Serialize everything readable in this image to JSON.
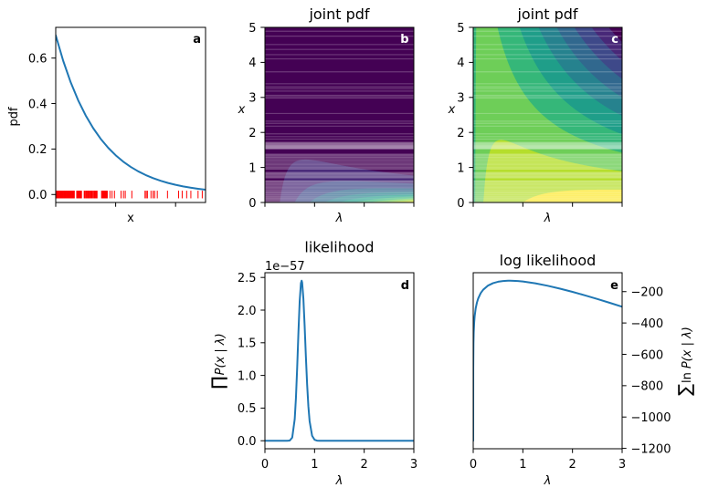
{
  "samples": [
    0.01,
    0.03,
    0.04,
    0.06,
    0.08,
    0.09,
    0.11,
    0.12,
    0.14,
    0.16,
    0.17,
    0.19,
    0.21,
    0.22,
    0.24,
    0.26,
    0.28,
    0.29,
    0.31,
    0.33,
    0.35,
    0.37,
    0.39,
    0.41,
    0.43,
    0.45,
    0.47,
    0.49,
    0.51,
    0.53,
    0.55,
    0.57,
    0.59,
    0.61,
    0.62,
    0.7,
    0.72,
    0.74,
    0.76,
    0.78,
    0.8,
    0.82,
    0.84,
    0.86,
    0.95,
    0.97,
    1.0,
    1.02,
    1.05,
    1.08,
    1.1,
    1.13,
    1.16,
    1.19,
    1.21,
    1.24,
    1.27,
    1.29,
    1.31,
    1.34,
    1.36,
    1.38,
    1.53,
    1.54,
    1.55,
    1.56,
    1.57,
    1.58,
    1.59,
    1.6,
    1.61,
    1.62,
    1.63,
    1.64,
    1.66,
    1.67,
    1.69,
    1.7,
    1.72,
    1.81,
    1.88,
    1.96,
    2.18,
    2.26,
    2.32,
    2.54,
    2.98,
    3.02,
    3.06,
    3.18,
    3.25,
    3.3,
    3.39,
    3.73,
    4.1,
    4.22,
    4.37,
    4.51,
    4.75,
    4.89
  ],
  "chart_data": [
    {
      "panel": "a",
      "type": "line",
      "title": "",
      "xlabel": "x",
      "ylabel": "pdf",
      "xlim": [
        0,
        5
      ],
      "ylim": [
        -0.035,
        0.735
      ],
      "xticks": [
        0,
        2,
        4
      ],
      "xticklabels": [],
      "yticks": [
        0,
        0.2,
        0.4,
        0.6
      ],
      "yticklabels": [
        "0.0",
        "0.2",
        "0.4",
        "0.6"
      ],
      "yaxis_side": "left",
      "grid": false,
      "series": [
        {
          "name": "pdf",
          "color": "#1f77b4",
          "x": [
            0,
            0.25,
            0.5,
            0.75,
            1,
            1.25,
            1.5,
            1.75,
            2,
            2.25,
            2.5,
            2.75,
            3,
            3.25,
            3.5,
            3.75,
            4,
            4.25,
            4.5,
            4.75,
            5
          ],
          "y": [
            0.7,
            0.5876,
            0.4933,
            0.4141,
            0.3476,
            0.2918,
            0.2449,
            0.2056,
            0.1726,
            0.1449,
            0.1217,
            0.1021,
            0.0857,
            0.072,
            0.0604,
            0.0507,
            0.0426,
            0.0357,
            0.03,
            0.0252,
            0.0211
          ]
        }
      ],
      "rug": {
        "source": "samples",
        "y": 0,
        "color": "#ff0000"
      },
      "panel_label": "a",
      "panel_label_color": "#000000"
    },
    {
      "panel": "b",
      "type": "contourf",
      "title": "joint pdf",
      "xlabel": "λ",
      "ylabel": "x",
      "xlim": [
        0,
        3
      ],
      "ylim": [
        0,
        5
      ],
      "xticks": [
        0,
        1,
        2,
        3
      ],
      "xticklabels": [],
      "yticks": [
        0,
        1,
        2,
        3,
        4,
        5
      ],
      "yticklabels": [
        "0",
        "1",
        "2",
        "3",
        "4",
        "5"
      ],
      "yaxis_side": "left",
      "z": "pdf",
      "colormap": "viridis",
      "levels": [
        0,
        0.3,
        0.6,
        0.9,
        1.2,
        1.5,
        1.8,
        2.1,
        2.4,
        2.7,
        3.0
      ],
      "colors": [
        "#440154",
        "#482878",
        "#3e4989",
        "#31688e",
        "#26828e",
        "#1f9e89",
        "#35b779",
        "#6ece58",
        "#b5de2b",
        "#fde725"
      ],
      "hlines": {
        "source": "samples",
        "color": "#ffffff",
        "alpha": 0.22
      },
      "panel_label": "b",
      "panel_label_color": "#ffffff"
    },
    {
      "panel": "c",
      "type": "contourf",
      "title": "joint pdf",
      "xlabel": "λ",
      "ylabel": "x",
      "xlim": [
        0,
        3
      ],
      "ylim": [
        0,
        5
      ],
      "xticks": [
        0,
        1,
        2,
        3
      ],
      "xticklabels": [],
      "yticks": [
        0,
        1,
        2,
        3,
        4,
        5
      ],
      "yticklabels": [
        "0",
        "1",
        "2",
        "3",
        "4",
        "5"
      ],
      "yaxis_side": "left",
      "z": "log_pdf",
      "colormap": "viridis",
      "levels": [
        -14.22,
        -12.64,
        -11.06,
        -9.48,
        -7.9,
        -6.32,
        -4.74,
        -3.16,
        -1.58,
        0,
        1.58
      ],
      "colors": [
        "#440154",
        "#482878",
        "#3e4989",
        "#31688e",
        "#26828e",
        "#1f9e89",
        "#35b779",
        "#6ece58",
        "#b5de2b",
        "#fde725"
      ],
      "hlines": {
        "source": "samples",
        "color": "#ffffff",
        "alpha": 0.22
      },
      "panel_label": "c",
      "panel_label_color": "#ffffff"
    },
    {
      "panel": "d",
      "type": "line",
      "title": "likelihood",
      "xlabel": "λ",
      "ylabel_symbol": "∏",
      "ylabel": "P(x | λ)",
      "y_offset_text": "1e−57",
      "xlim": [
        0,
        3
      ],
      "ylim": [
        -0.1225,
        2.5725
      ],
      "xticks": [
        0,
        1,
        2,
        3
      ],
      "xticklabels": [
        "0",
        "1",
        "2",
        "3"
      ],
      "yticks": [
        0,
        0.5,
        1,
        1.5,
        2,
        2.5
      ],
      "yticklabels": [
        "0.0",
        "0.5",
        "1.0",
        "1.5",
        "2.0",
        "2.5"
      ],
      "yaxis_side": "left",
      "series": [
        {
          "name": "likelihood",
          "color": "#1f77b4",
          "x": [
            0,
            0.3,
            0.4,
            0.45,
            0.5,
            0.55,
            0.6,
            0.625,
            0.65,
            0.675,
            0.7,
            0.725,
            0.74,
            0.75,
            0.775,
            0.8,
            0.825,
            0.85,
            0.875,
            0.9,
            0.95,
            1.0,
            1.05,
            1.1,
            1.2,
            1.5,
            2.0,
            2.5,
            3.0
          ],
          "y": [
            0,
            0,
            0,
            0.0001,
            0.003,
            0.048,
            0.329,
            0.66,
            1.128,
            1.661,
            2.134,
            2.411,
            2.45,
            2.421,
            2.173,
            1.76,
            1.29,
            0.864,
            0.531,
            0.3,
            0.077,
            0.015,
            0.002,
            0.0003,
            0,
            0,
            0,
            0,
            0
          ]
        }
      ],
      "panel_label": "d",
      "panel_label_color": "#000000"
    },
    {
      "panel": "e",
      "type": "line",
      "title": "log likelihood",
      "xlabel": "λ",
      "ylabel_symbol": "∑",
      "ylabel_prefix": "ln",
      "ylabel": "P(x | λ)",
      "xlim": [
        0,
        3
      ],
      "ylim": [
        -1202.4,
        -79.3
      ],
      "xticks": [
        0,
        1,
        2,
        3
      ],
      "xticklabels": [
        "0",
        "1",
        "2",
        "3"
      ],
      "yticks": [
        -200,
        -400,
        -600,
        -800,
        -1000,
        -1200
      ],
      "yticklabels": [
        "−200",
        "−400",
        "−600",
        "−800",
        "−1000",
        "−1200"
      ],
      "yaxis_side": "right",
      "series": [
        {
          "name": "log-likelihood",
          "color": "#1f77b4",
          "x": [
            1e-05,
            0.001,
            0.005,
            0.01,
            0.02,
            0.03,
            0.05,
            0.075,
            0.1,
            0.15,
            0.2,
            0.3,
            0.4,
            0.5,
            0.6,
            0.7,
            0.74,
            0.8,
            0.9,
            1.0,
            1.25,
            1.5,
            1.75,
            2.0,
            2.25,
            2.5,
            2.75,
            3.0
          ],
          "y": [
            -1151.3,
            -690.9,
            -530.5,
            -461.9,
            -393.9,
            -354.7,
            -306.3,
            -269.2,
            -243.8,
            -210.0,
            -188.0,
            -161.0,
            -145.8,
            -137.0,
            -132.4,
            -130.5,
            -130.35,
            -130.7,
            -132.4,
            -135.5,
            -147.0,
            -162.6,
            -181.1,
            -201.6,
            -223.7,
            -247.0,
            -271.4,
            -296.5
          ]
        }
      ],
      "panel_label": "e",
      "panel_label_color": "#000000"
    }
  ]
}
